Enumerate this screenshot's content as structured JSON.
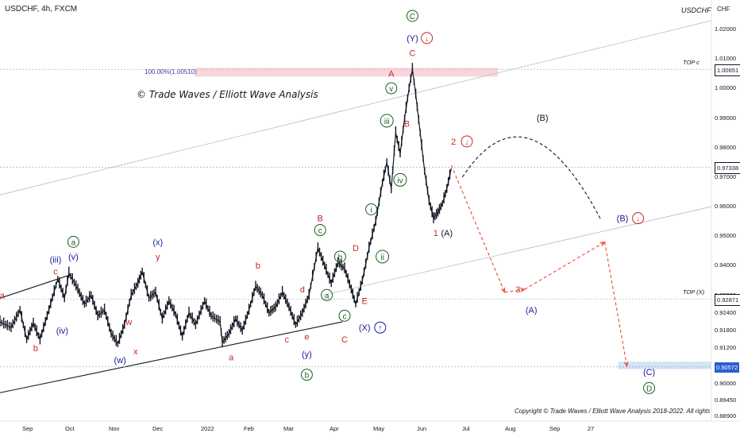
{
  "header": {
    "symbol_line": "USDCHF, 4h, FXCM",
    "symbol_tag": "USDCHF",
    "currency": "CHF"
  },
  "watermark": "© Trade Waves / Elliott Wave Analysis",
  "copyright": "Copyright © Trade Waves / Elliott Wave Analysis 2018-2022. All rights reserved",
  "retracement_label": "100.00%(1.00510)",
  "colors": {
    "candle": "#131722",
    "red": "#c62828",
    "blue": "#1a1a9c",
    "green": "#1b5e20",
    "projection": "#f44336",
    "zone_red": "#f8c8d0",
    "zone_blue": "#c5d9f1",
    "price_label_dark": "#131722",
    "price_label_blue": "#2b5fd1"
  },
  "chart_data": {
    "type": "candlestick",
    "symbol": "USDCHF",
    "timeframe": "4h",
    "source": "FXCM",
    "ylim": [
      0.889,
      1.027
    ],
    "y_ticks": [
      "1.02000",
      "1.01000",
      "1.00000",
      "0.99000",
      "0.98000",
      "0.97000",
      "0.96000",
      "0.95000",
      "0.94000",
      "0.93000",
      "0.92400",
      "0.91800",
      "0.91200",
      "0.90000",
      "0.89450",
      "0.88900"
    ],
    "x_ticks": [
      "Sep",
      "Oct",
      "Nov",
      "Dec",
      "2022",
      "Feb",
      "Mar",
      "Apr",
      "May",
      "Jun",
      "Jul",
      "Aug",
      "Sep",
      "27"
    ],
    "price_labels": [
      {
        "text": "1.00651",
        "value": 1.00651,
        "style": "dark",
        "line_label": "TOP c"
      },
      {
        "text": "0.97338",
        "value": 0.97338,
        "style": "dark",
        "line_label": ""
      },
      {
        "text": "0.92871",
        "value": 0.92871,
        "style": "dark",
        "line_label": "TOP (X)"
      },
      {
        "text": "0.90572",
        "value": 0.90572,
        "style": "blue",
        "line_label": ""
      }
    ],
    "price_path": [
      [
        0.0,
        0.921
      ],
      [
        0.5,
        0.919
      ],
      [
        0.9,
        0.925
      ],
      [
        1.2,
        0.915
      ],
      [
        1.5,
        0.9205
      ],
      [
        1.8,
        0.915
      ],
      [
        2.2,
        0.925
      ],
      [
        2.6,
        0.9355
      ],
      [
        2.9,
        0.929
      ],
      [
        3.1,
        0.9375
      ],
      [
        3.5,
        0.932
      ],
      [
        3.8,
        0.927
      ],
      [
        4.1,
        0.93
      ],
      [
        4.4,
        0.923
      ],
      [
        4.7,
        0.925
      ],
      [
        5.0,
        0.917
      ],
      [
        5.3,
        0.9135
      ],
      [
        5.6,
        0.92
      ],
      [
        5.9,
        0.93
      ],
      [
        6.2,
        0.934
      ],
      [
        6.4,
        0.938
      ],
      [
        6.7,
        0.929
      ],
      [
        7.0,
        0.931
      ],
      [
        7.3,
        0.922
      ],
      [
        7.6,
        0.928
      ],
      [
        7.9,
        0.9235
      ],
      [
        8.2,
        0.916
      ],
      [
        8.5,
        0.924
      ],
      [
        8.8,
        0.92
      ],
      [
        9.2,
        0.928
      ],
      [
        9.5,
        0.923
      ],
      [
        9.9,
        0.921
      ],
      [
        10.0,
        0.914
      ],
      [
        10.3,
        0.917
      ],
      [
        10.6,
        0.922
      ],
      [
        10.9,
        0.918
      ],
      [
        11.2,
        0.925
      ],
      [
        11.5,
        0.933
      ],
      [
        11.8,
        0.93
      ],
      [
        12.1,
        0.924
      ],
      [
        12.4,
        0.926
      ],
      [
        12.7,
        0.931
      ],
      [
        13.0,
        0.926
      ],
      [
        13.3,
        0.92
      ],
      [
        13.6,
        0.924
      ],
      [
        13.9,
        0.93
      ],
      [
        14.3,
        0.946
      ],
      [
        14.6,
        0.94
      ],
      [
        14.9,
        0.934
      ],
      [
        15.2,
        0.941
      ],
      [
        15.5,
        0.939
      ],
      [
        15.8,
        0.932
      ],
      [
        16.0,
        0.927
      ],
      [
        16.3,
        0.935
      ],
      [
        16.6,
        0.946
      ],
      [
        16.9,
        0.955
      ],
      [
        17.2,
        0.968
      ],
      [
        17.4,
        0.975
      ],
      [
        17.6,
        0.966
      ],
      [
        17.8,
        0.985
      ],
      [
        18.0,
        0.978
      ],
      [
        18.2,
        0.99
      ],
      [
        18.4,
        1.0
      ],
      [
        18.55,
        1.0065
      ],
      [
        18.7,
        0.998
      ],
      [
        18.9,
        0.985
      ],
      [
        19.1,
        0.972
      ],
      [
        19.3,
        0.962
      ],
      [
        19.5,
        0.956
      ],
      [
        19.7,
        0.958
      ],
      [
        19.9,
        0.961
      ],
      [
        20.1,
        0.966
      ],
      [
        20.3,
        0.973
      ]
    ],
    "scenario_path_red": [
      [
        20.3,
        0.974
      ],
      [
        22.7,
        0.931
      ],
      [
        23.6,
        0.932
      ],
      [
        27.2,
        0.948
      ],
      [
        28.2,
        0.906
      ]
    ],
    "scenario_path_black_arc": {
      "from": [
        20.8,
        0.97
      ],
      "peak": [
        23.8,
        0.983
      ],
      "to": [
        27.0,
        0.956
      ]
    },
    "trendlines": [
      {
        "from": [
          0.0,
          0.897
        ],
        "to": [
          15.4,
          0.921
        ]
      },
      {
        "from": [
          0.0,
          0.929
        ],
        "to": [
          3.2,
          0.937
        ]
      },
      {
        "from": [
          0.0,
          0.964
        ],
        "to": [
          32.0,
          1.023
        ]
      },
      {
        "from": [
          14.5,
          0.93
        ],
        "to": [
          32.0,
          0.96
        ]
      }
    ],
    "zones": [
      {
        "from": 8.8,
        "to": 22.4,
        "low": 1.004,
        "high": 1.007,
        "color": "red"
      },
      {
        "from": 27.8,
        "to": 32.0,
        "low": 0.905,
        "high": 0.9075,
        "color": "blue"
      }
    ],
    "annotations": [
      {
        "text": "C",
        "x": 18.55,
        "y": 1.0235,
        "color": "green",
        "circle": true
      },
      {
        "text": "(Y)",
        "x": 18.55,
        "y": 1.016,
        "color": "blue"
      },
      {
        "text": "↓",
        "x": 19.2,
        "y": 1.016,
        "color": "red",
        "circle": true
      },
      {
        "text": "C",
        "x": 18.55,
        "y": 1.011,
        "color": "red"
      },
      {
        "text": "A",
        "x": 17.6,
        "y": 1.004,
        "color": "red"
      },
      {
        "text": "v",
        "x": 17.6,
        "y": 0.999,
        "color": "green",
        "circle": true
      },
      {
        "text": "B",
        "x": 18.3,
        "y": 0.987,
        "color": "red"
      },
      {
        "text": "iii",
        "x": 17.4,
        "y": 0.988,
        "color": "green",
        "circle": true
      },
      {
        "text": "iv",
        "x": 18.0,
        "y": 0.968,
        "color": "green",
        "circle": true
      },
      {
        "text": "i",
        "x": 16.7,
        "y": 0.958,
        "color": "green",
        "circle": true
      },
      {
        "text": "ii",
        "x": 17.2,
        "y": 0.942,
        "color": "green",
        "circle": true
      },
      {
        "text": "B",
        "x": 14.4,
        "y": 0.955,
        "color": "red"
      },
      {
        "text": "c",
        "x": 14.4,
        "y": 0.951,
        "color": "green",
        "circle": true
      },
      {
        "text": "b",
        "x": 15.3,
        "y": 0.942,
        "color": "green",
        "circle": true
      },
      {
        "text": "D",
        "x": 16.0,
        "y": 0.945,
        "color": "red"
      },
      {
        "text": "d",
        "x": 13.6,
        "y": 0.931,
        "color": "red"
      },
      {
        "text": "a",
        "x": 14.7,
        "y": 0.929,
        "color": "green",
        "circle": true
      },
      {
        "text": "E",
        "x": 16.4,
        "y": 0.927,
        "color": "red"
      },
      {
        "text": "(X)",
        "x": 16.4,
        "y": 0.918,
        "color": "blue"
      },
      {
        "text": "↑",
        "x": 17.1,
        "y": 0.918,
        "color": "blue",
        "circle": true
      },
      {
        "text": "c",
        "x": 15.5,
        "y": 0.922,
        "color": "green",
        "circle": true
      },
      {
        "text": "C",
        "x": 15.5,
        "y": 0.914,
        "color": "red"
      },
      {
        "text": "e",
        "x": 13.8,
        "y": 0.915,
        "color": "red"
      },
      {
        "text": "(y)",
        "x": 13.8,
        "y": 0.909,
        "color": "blue"
      },
      {
        "text": "b",
        "x": 13.8,
        "y": 0.902,
        "color": "green",
        "circle": true
      },
      {
        "text": "c",
        "x": 12.9,
        "y": 0.914,
        "color": "red"
      },
      {
        "text": "b",
        "x": 11.6,
        "y": 0.939,
        "color": "red"
      },
      {
        "text": "a",
        "x": 10.4,
        "y": 0.908,
        "color": "red"
      },
      {
        "text": "(x)",
        "x": 7.1,
        "y": 0.947,
        "color": "blue"
      },
      {
        "text": "y",
        "x": 7.1,
        "y": 0.942,
        "color": "red"
      },
      {
        "text": "w",
        "x": 5.8,
        "y": 0.92,
        "color": "red"
      },
      {
        "text": "x",
        "x": 6.1,
        "y": 0.91,
        "color": "red"
      },
      {
        "text": "(w)",
        "x": 5.4,
        "y": 0.907,
        "color": "blue"
      },
      {
        "text": "a",
        "x": 3.3,
        "y": 0.947,
        "color": "green",
        "circle": true
      },
      {
        "text": "(v)",
        "x": 3.3,
        "y": 0.942,
        "color": "blue"
      },
      {
        "text": "(iii)",
        "x": 2.5,
        "y": 0.941,
        "color": "blue"
      },
      {
        "text": "c",
        "x": 2.5,
        "y": 0.937,
        "color": "red"
      },
      {
        "text": "(iv)",
        "x": 2.8,
        "y": 0.917,
        "color": "blue"
      },
      {
        "text": "b",
        "x": 1.6,
        "y": 0.911,
        "color": "red"
      },
      {
        "text": "a",
        "x": 0.1,
        "y": 0.929,
        "color": "red"
      },
      {
        "text": "2",
        "x": 20.4,
        "y": 0.981,
        "color": "red"
      },
      {
        "text": "↓",
        "x": 21.0,
        "y": 0.981,
        "color": "red",
        "circle": true
      },
      {
        "text": "(B)",
        "x": 24.4,
        "y": 0.989,
        "color": "black"
      },
      {
        "text": "1",
        "x": 19.6,
        "y": 0.95,
        "color": "red"
      },
      {
        "text": "(A)",
        "x": 20.1,
        "y": 0.95,
        "color": "black"
      },
      {
        "text": "(B)",
        "x": 28.0,
        "y": 0.955,
        "color": "blue"
      },
      {
        "text": "↓",
        "x": 28.7,
        "y": 0.955,
        "color": "red",
        "circle": true
      },
      {
        "text": "3",
        "x": 23.3,
        "y": 0.931,
        "color": "red"
      },
      {
        "text": "(A)",
        "x": 23.9,
        "y": 0.924,
        "color": "blue"
      },
      {
        "text": "(C)",
        "x": 29.2,
        "y": 0.903,
        "color": "blue"
      },
      {
        "text": "D",
        "x": 29.2,
        "y": 0.8975,
        "color": "green",
        "circle": true
      }
    ]
  }
}
